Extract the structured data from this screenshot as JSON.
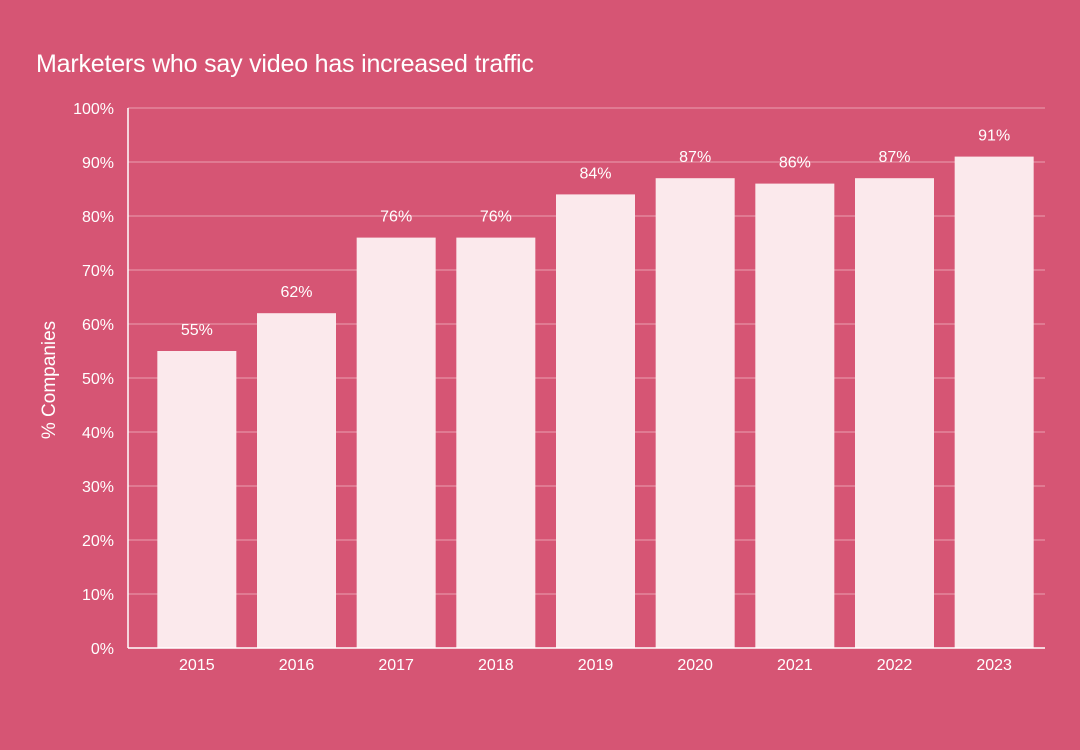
{
  "chart_data": {
    "type": "bar",
    "title": "Marketers who say video has increased traffic",
    "xlabel": "",
    "ylabel": "% Companies",
    "categories": [
      "2015",
      "2016",
      "2017",
      "2018",
      "2019",
      "2020",
      "2021",
      "2022",
      "2023"
    ],
    "values": [
      55,
      62,
      76,
      76,
      84,
      87,
      86,
      87,
      91
    ],
    "data_labels": [
      "55%",
      "62%",
      "76%",
      "76%",
      "84%",
      "87%",
      "86%",
      "87%",
      "91%"
    ],
    "ylim": [
      0,
      100
    ],
    "yticks": [
      "0%",
      "10%",
      "20%",
      "30%",
      "40%",
      "50%",
      "60%",
      "70%",
      "80%",
      "90%",
      "100%"
    ],
    "grid": true,
    "legend": "none",
    "colors": {
      "background": "#d65574",
      "bar": "#fbe9ec",
      "grid": "#eb9fb1",
      "text": "#ffffff"
    }
  }
}
